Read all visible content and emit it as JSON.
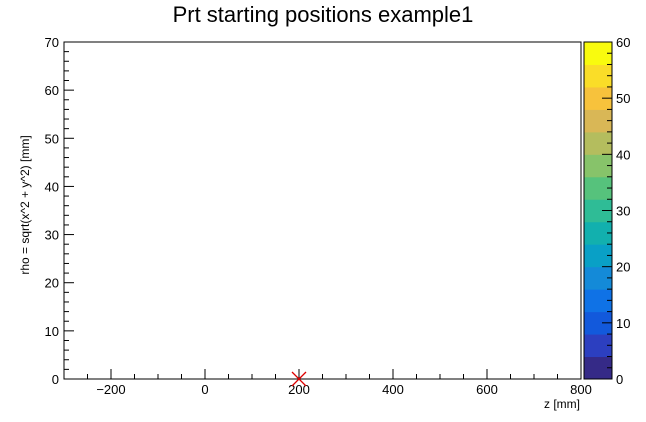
{
  "chart_data": {
    "type": "heatmap",
    "title": "Prt starting positions example1",
    "xlabel": "z [mm]",
    "ylabel": "rho = sqrt(x^2 + y^2) [mm]",
    "xlim": [
      -300,
      800
    ],
    "ylim": [
      0,
      70
    ],
    "x_ticks": [
      -200,
      0,
      200,
      400,
      600,
      800
    ],
    "y_ticks": [
      0,
      10,
      20,
      30,
      40,
      50,
      60,
      70
    ],
    "colorbar": {
      "range": [
        0,
        60
      ],
      "ticks": [
        0,
        10,
        20,
        30,
        40,
        50,
        60
      ],
      "palette": [
        "#352a87",
        "#2c3fc0",
        "#1259dc",
        "#0f72e6",
        "#148ad8",
        "#09a0c6",
        "#12b0ae",
        "#2fbc96",
        "#56c27c",
        "#87c36a",
        "#b4bd5e",
        "#d9b756",
        "#f7c23c",
        "#fadd28",
        "#f9fb0e"
      ]
    },
    "points": [
      {
        "x": 200,
        "y": 0,
        "marker": "x",
        "color": "#dd0000"
      }
    ],
    "grid": false
  }
}
